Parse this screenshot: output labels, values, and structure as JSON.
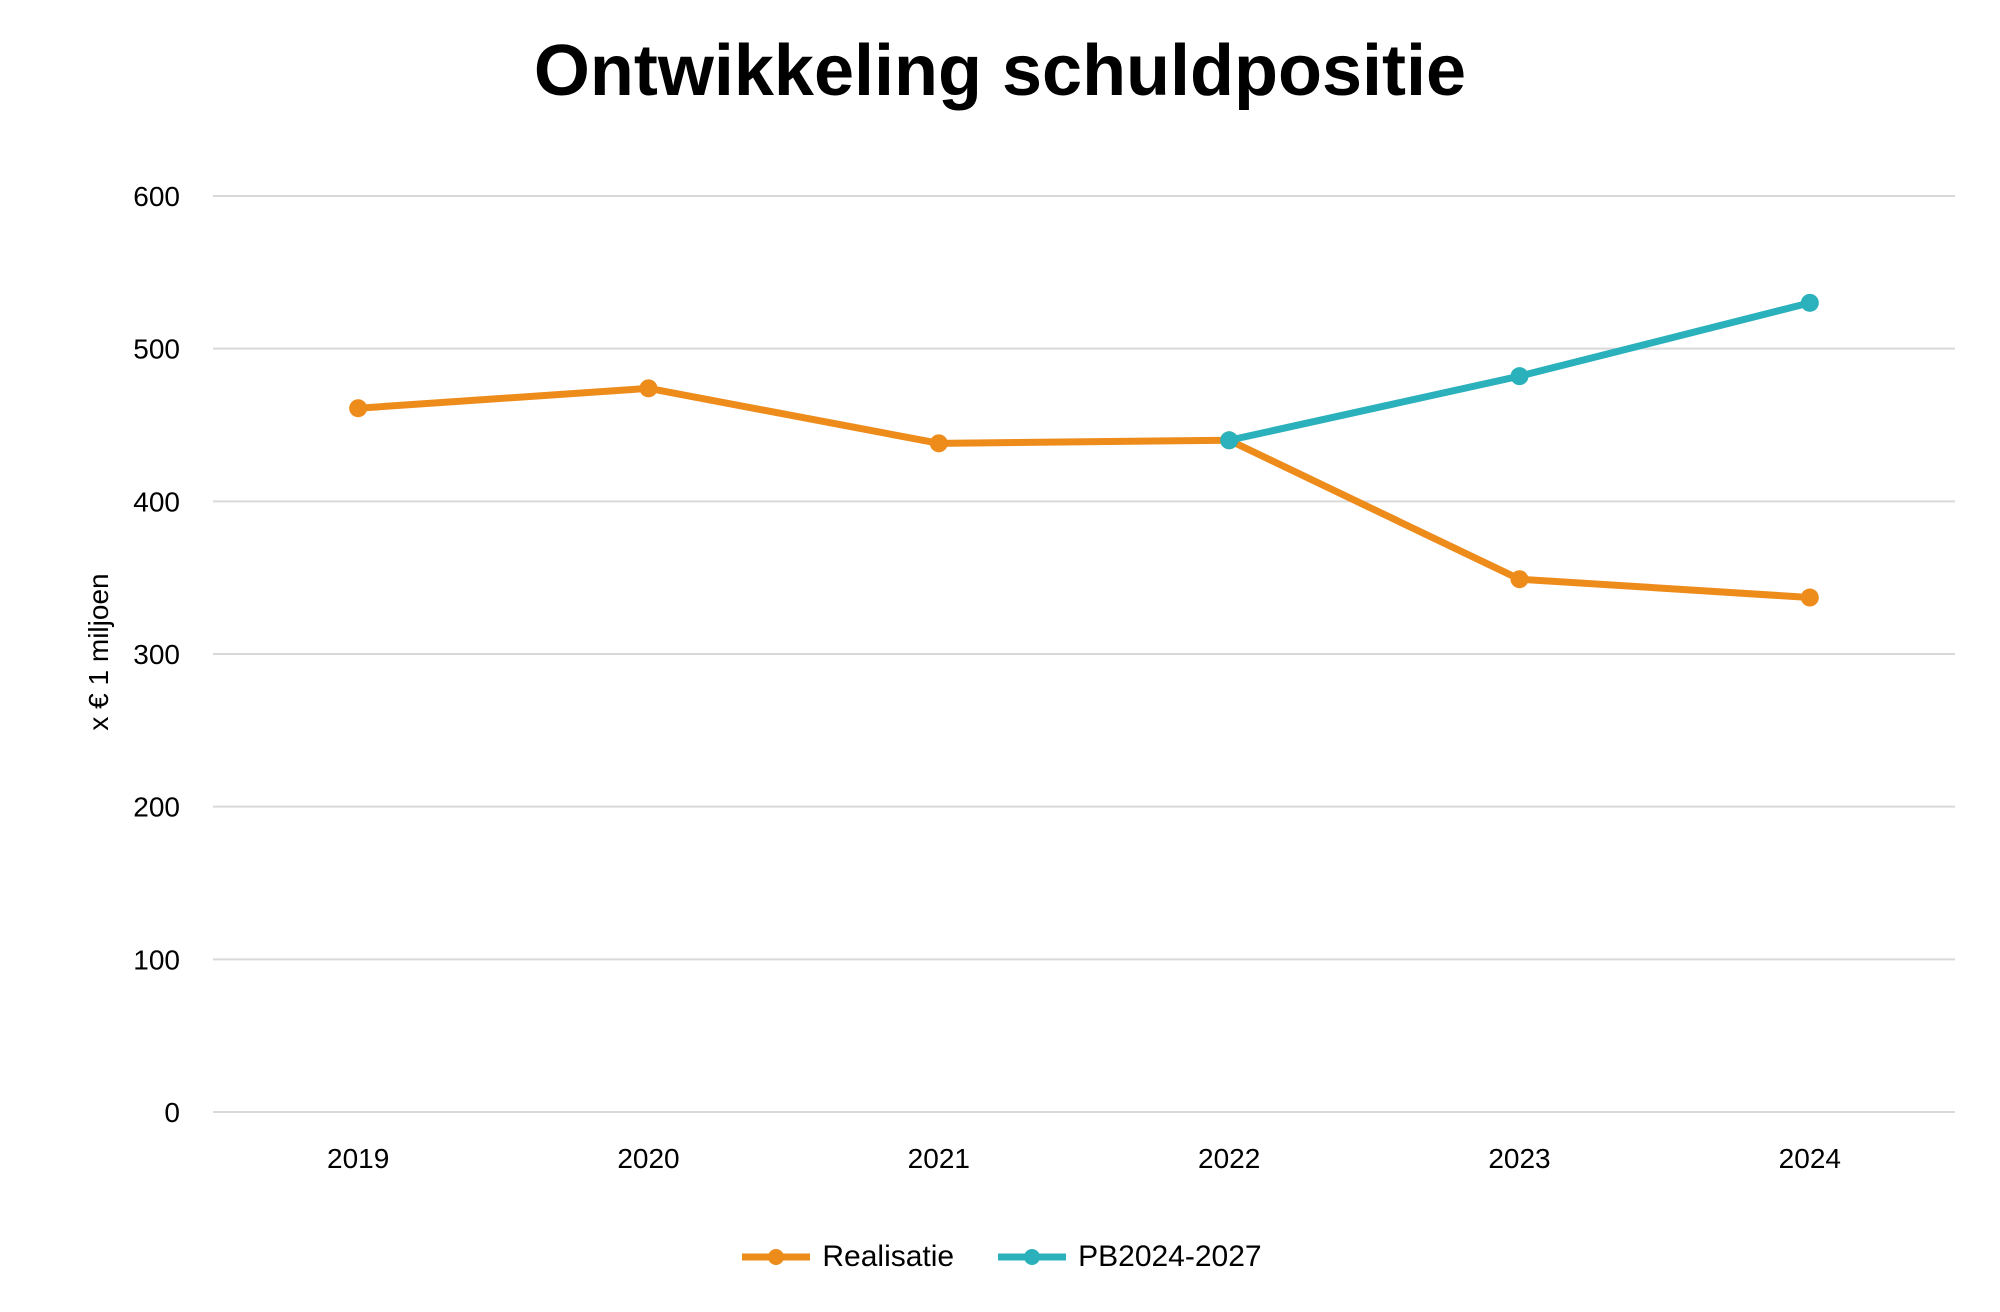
{
  "chart_data": {
    "type": "line",
    "title": "Ontwikkeling schuldpositie",
    "xlabel": "",
    "ylabel": "x € 1 miljoen",
    "categories": [
      "2019",
      "2020",
      "2021",
      "2022",
      "2023",
      "2024"
    ],
    "ylim": [
      0,
      600
    ],
    "yticks": [
      "0",
      "100",
      "200",
      "300",
      "400",
      "500",
      "600"
    ],
    "grid": true,
    "legend_position": "bottom",
    "series": [
      {
        "name": "Realisatie",
        "color": "#ED8B1B",
        "values": [
          461,
          474,
          438,
          440,
          349,
          337
        ]
      },
      {
        "name": "PB2024-2027",
        "color": "#2BB1BB",
        "values": [
          null,
          null,
          null,
          440,
          482,
          530
        ]
      }
    ]
  }
}
